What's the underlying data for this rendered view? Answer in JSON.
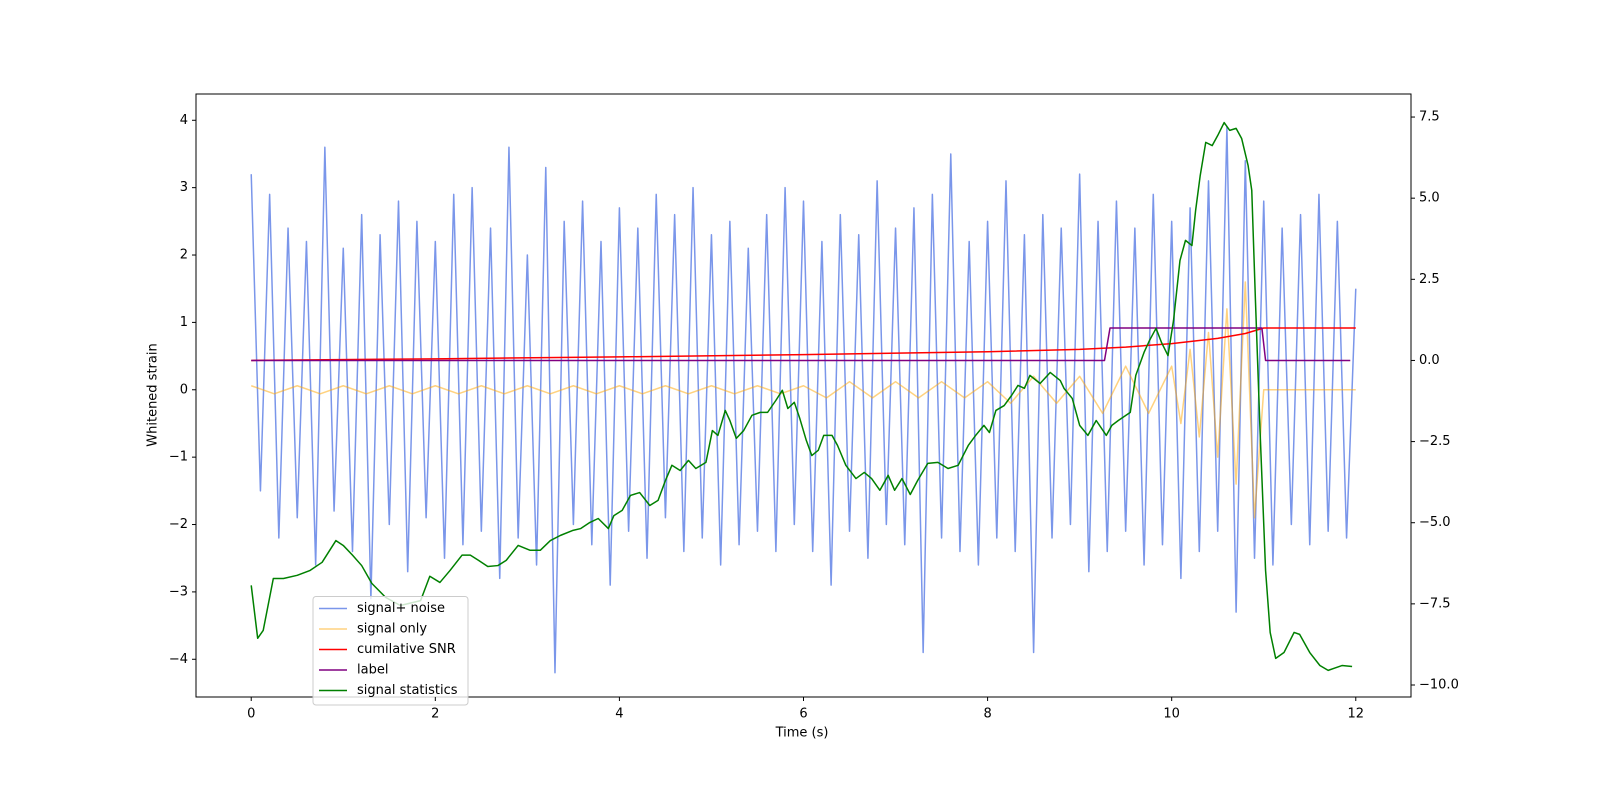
{
  "chart_data": {
    "type": "line",
    "xlabel": "Time (s)",
    "ylabel": "Whitened strain",
    "xlim": [
      -0.6,
      12.6
    ],
    "ylim": [
      -4.56,
      4.39
    ],
    "y2lim": [
      -10.37,
      8.21
    ],
    "xticks": [
      0,
      2,
      4,
      6,
      8,
      10,
      12
    ],
    "yticks": [
      {
        "value": -4,
        "label": "−4"
      },
      {
        "value": -3,
        "label": "−3"
      },
      {
        "value": -2,
        "label": "−2"
      },
      {
        "value": -1,
        "label": "−1"
      },
      0,
      1,
      2,
      3,
      4
    ],
    "y2ticks": [
      {
        "value": -10,
        "label": "−10.0"
      },
      {
        "value": -7.5,
        "label": "−7.5"
      },
      {
        "value": -5,
        "label": "−5.0"
      },
      {
        "value": -2.5,
        "label": "−2.5"
      },
      {
        "value": 0,
        "label": "0.0"
      },
      2.5,
      {
        "value": 5,
        "label": "5.0"
      },
      7.5
    ],
    "legend": "lower left",
    "series": [
      {
        "name": "signal+ noise",
        "color": "royalblue",
        "alpha": 0.7,
        "x": [
          0,
          0.1,
          0.2,
          0.3,
          0.4,
          0.5,
          0.6,
          0.7,
          0.8,
          0.9,
          1,
          1.1,
          1.2,
          1.3,
          1.4,
          1.5,
          1.6,
          1.7,
          1.8,
          1.9,
          2,
          2.1,
          2.2,
          2.3,
          2.4,
          2.5,
          2.6,
          2.7,
          2.8,
          2.9,
          3,
          3.1,
          3.2,
          3.3,
          3.4,
          3.5,
          3.6,
          3.7,
          3.8,
          3.9,
          4,
          4.1,
          4.2,
          4.3,
          4.4,
          4.5,
          4.6,
          4.7,
          4.8,
          4.9,
          5,
          5.1,
          5.2,
          5.3,
          5.4,
          5.5,
          5.6,
          5.7,
          5.8,
          5.9,
          6,
          6.1,
          6.2,
          6.3,
          6.4,
          6.5,
          6.6,
          6.7,
          6.8,
          6.9,
          7,
          7.1,
          7.2,
          7.3,
          7.4,
          7.5,
          7.6,
          7.7,
          7.8,
          7.9,
          8,
          8.1,
          8.2,
          8.3,
          8.4,
          8.5,
          8.6,
          8.7,
          8.8,
          8.9,
          9,
          9.1,
          9.2,
          9.3,
          9.4,
          9.5,
          9.6,
          9.7,
          9.8,
          9.9,
          10,
          10.1,
          10.2,
          10.3,
          10.4,
          10.5,
          10.6,
          10.7,
          10.8,
          10.9,
          11,
          11.1,
          11.2,
          11.3,
          11.4,
          11.5,
          11.6,
          11.7,
          11.8,
          11.9,
          12
        ],
        "values": [
          3.2,
          -1.5,
          2.9,
          -2.2,
          2.4,
          -1.9,
          2.2,
          -2.6,
          3.6,
          -1.8,
          2.1,
          -2.4,
          2.6,
          -3.1,
          2.3,
          -2.0,
          2.8,
          -2.7,
          2.5,
          -1.9,
          2.2,
          -2.5,
          2.9,
          -2.3,
          3.0,
          -2.1,
          2.4,
          -2.8,
          3.6,
          -2.2,
          2.0,
          -2.6,
          3.3,
          -4.2,
          2.5,
          -2.0,
          2.8,
          -2.3,
          2.2,
          -2.9,
          2.7,
          -2.1,
          2.4,
          -2.5,
          2.9,
          -1.9,
          2.6,
          -2.4,
          3.0,
          -2.2,
          2.3,
          -2.6,
          2.5,
          -2.3,
          2.1,
          -2.1,
          2.6,
          -2.4,
          3.0,
          -2.0,
          2.8,
          -2.4,
          2.2,
          -2.9,
          2.6,
          -2.1,
          2.3,
          -2.5,
          3.1,
          -2.0,
          2.4,
          -2.3,
          2.7,
          -3.9,
          2.9,
          -2.2,
          3.5,
          -2.4,
          2.2,
          -2.6,
          2.5,
          -2.2,
          3.1,
          -2.4,
          2.3,
          -3.9,
          2.6,
          -2.2,
          2.4,
          -2.0,
          3.2,
          -2.7,
          2.5,
          -2.4,
          2.8,
          -2.1,
          2.4,
          -2.6,
          2.9,
          -2.3,
          2.5,
          -2.8,
          2.7,
          -2.4,
          3.1,
          -2.1,
          3.9,
          -3.3,
          3.4,
          -2.5,
          2.8,
          -2.6,
          2.4,
          -2.0,
          2.6,
          -2.3,
          2.9,
          -2.1,
          2.5,
          -2.2,
          1.5
        ]
      },
      {
        "name": "signal only",
        "color": "orange",
        "alpha": 0.5,
        "x": [
          0,
          0.25,
          0.5,
          0.75,
          1,
          1.25,
          1.5,
          1.75,
          2,
          2.25,
          2.5,
          2.75,
          3,
          3.25,
          3.5,
          3.75,
          4,
          4.25,
          4.5,
          4.75,
          5,
          5.25,
          5.5,
          5.75,
          6,
          6.25,
          6.5,
          6.75,
          7,
          7.25,
          7.5,
          7.75,
          8,
          8.25,
          8.5,
          8.75,
          9,
          9.25,
          9.5,
          9.75,
          10,
          10.1,
          10.2,
          10.3,
          10.4,
          10.5,
          10.6,
          10.7,
          10.8,
          10.9,
          11,
          12
        ],
        "values": [
          0.06,
          -0.06,
          0.06,
          -0.06,
          0.06,
          -0.06,
          0.06,
          -0.06,
          0.06,
          -0.06,
          0.06,
          -0.06,
          0.06,
          -0.06,
          0.06,
          -0.06,
          0.06,
          -0.06,
          0.06,
          -0.06,
          0.06,
          -0.06,
          0.06,
          -0.06,
          0.06,
          -0.12,
          0.12,
          -0.12,
          0.12,
          -0.12,
          0.12,
          -0.12,
          0.12,
          -0.2,
          0.2,
          -0.2,
          0.2,
          -0.35,
          0.35,
          -0.35,
          0.35,
          -0.5,
          0.6,
          -0.7,
          0.85,
          -1.0,
          1.2,
          -1.4,
          1.6,
          -1.9,
          0,
          0
        ]
      },
      {
        "name": "cumilative SNR",
        "color": "red",
        "axis": "y2",
        "x": [
          0,
          2,
          4,
          6,
          8,
          9,
          9.5,
          10,
          10.5,
          10.8,
          11,
          12
        ],
        "values": [
          0,
          0.05,
          0.11,
          0.18,
          0.27,
          0.34,
          0.41,
          0.52,
          0.68,
          0.83,
          1,
          1
        ]
      },
      {
        "name": "label",
        "color": "purple",
        "axis": "y2",
        "x": [
          0,
          9.27,
          9.33,
          10.98,
          11.02,
          11.94
        ],
        "values": [
          0,
          0,
          1,
          1,
          0,
          0
        ]
      },
      {
        "name": "signal statistics",
        "color": "green",
        "axis": "y2",
        "x": [
          0,
          0.07,
          0.13,
          0.24,
          0.35,
          0.5,
          0.64,
          0.77,
          0.92,
          1.0,
          1.1,
          1.2,
          1.31,
          1.46,
          1.62,
          1.84,
          1.94,
          2.05,
          2.16,
          2.29,
          2.38,
          2.47,
          2.57,
          2.68,
          2.77,
          2.9,
          3.03,
          3.14,
          3.25,
          3.36,
          3.49,
          3.58,
          3.68,
          3.77,
          3.88,
          3.94,
          4.03,
          4.12,
          4.22,
          4.33,
          4.42,
          4.5,
          4.57,
          4.66,
          4.75,
          4.83,
          4.94,
          5.01,
          5.07,
          5.15,
          5.2,
          5.27,
          5.35,
          5.44,
          5.53,
          5.61,
          5.7,
          5.77,
          5.83,
          5.9,
          5.96,
          6.03,
          6.09,
          6.16,
          6.22,
          6.31,
          6.37,
          6.46,
          6.57,
          6.66,
          6.74,
          6.83,
          6.92,
          6.99,
          7.07,
          7.16,
          7.24,
          7.35,
          7.46,
          7.57,
          7.68,
          7.79,
          7.87,
          7.96,
          8.02,
          8.09,
          8.18,
          8.26,
          8.33,
          8.4,
          8.46,
          8.57,
          8.68,
          8.79,
          8.83,
          8.92,
          9.0,
          9.09,
          9.18,
          9.29,
          9.35,
          9.42,
          9.55,
          9.61,
          9.7,
          9.76,
          9.83,
          9.89,
          9.96,
          10.02,
          10.09,
          10.15,
          10.22,
          10.26,
          10.31,
          10.37,
          10.44,
          10.5,
          10.57,
          10.63,
          10.7,
          10.76,
          10.83,
          10.87,
          10.91,
          10.96,
          11.02,
          11.07,
          11.13,
          11.22,
          11.33,
          11.39,
          11.5,
          11.61,
          11.7,
          11.76,
          11.85,
          11.96
        ],
        "values": [
          -6.93,
          -8.56,
          -8.32,
          -6.72,
          -6.72,
          -6.62,
          -6.47,
          -6.22,
          -5.55,
          -5.7,
          -6.0,
          -6.32,
          -6.87,
          -7.3,
          -7.55,
          -7.4,
          -6.65,
          -6.84,
          -6.47,
          -6.0,
          -6.0,
          -6.16,
          -6.35,
          -6.32,
          -6.16,
          -5.7,
          -5.85,
          -5.85,
          -5.55,
          -5.39,
          -5.24,
          -5.18,
          -4.99,
          -4.87,
          -5.18,
          -4.78,
          -4.62,
          -4.16,
          -4.07,
          -4.47,
          -4.31,
          -3.7,
          -3.23,
          -3.39,
          -3.08,
          -3.33,
          -3.14,
          -2.16,
          -2.31,
          -1.54,
          -1.85,
          -2.4,
          -2.16,
          -1.69,
          -1.6,
          -1.6,
          -1.23,
          -0.92,
          -1.48,
          -1.29,
          -1.79,
          -2.46,
          -2.93,
          -2.77,
          -2.31,
          -2.31,
          -2.62,
          -3.23,
          -3.64,
          -3.45,
          -3.64,
          -4.0,
          -3.54,
          -4.0,
          -3.64,
          -4.13,
          -3.7,
          -3.17,
          -3.14,
          -3.33,
          -3.23,
          -2.62,
          -2.31,
          -2.0,
          -2.22,
          -1.54,
          -1.39,
          -1.08,
          -0.77,
          -0.86,
          -0.46,
          -0.71,
          -0.37,
          -0.62,
          -0.86,
          -1.17,
          -2.0,
          -2.31,
          -1.85,
          -2.31,
          -2.0,
          -1.85,
          -1.6,
          -0.46,
          0.25,
          0.62,
          0.99,
          0.55,
          0.15,
          1.23,
          3.08,
          3.7,
          3.54,
          4.62,
          5.7,
          6.72,
          6.62,
          6.93,
          7.33,
          7.09,
          7.15,
          6.84,
          6.01,
          5.24,
          1.85,
          -2.16,
          -6.47,
          -8.38,
          -9.18,
          -9.0,
          -8.38,
          -8.44,
          -9.0,
          -9.4,
          -9.55,
          -9.49,
          -9.4,
          -9.43
        ]
      }
    ]
  }
}
